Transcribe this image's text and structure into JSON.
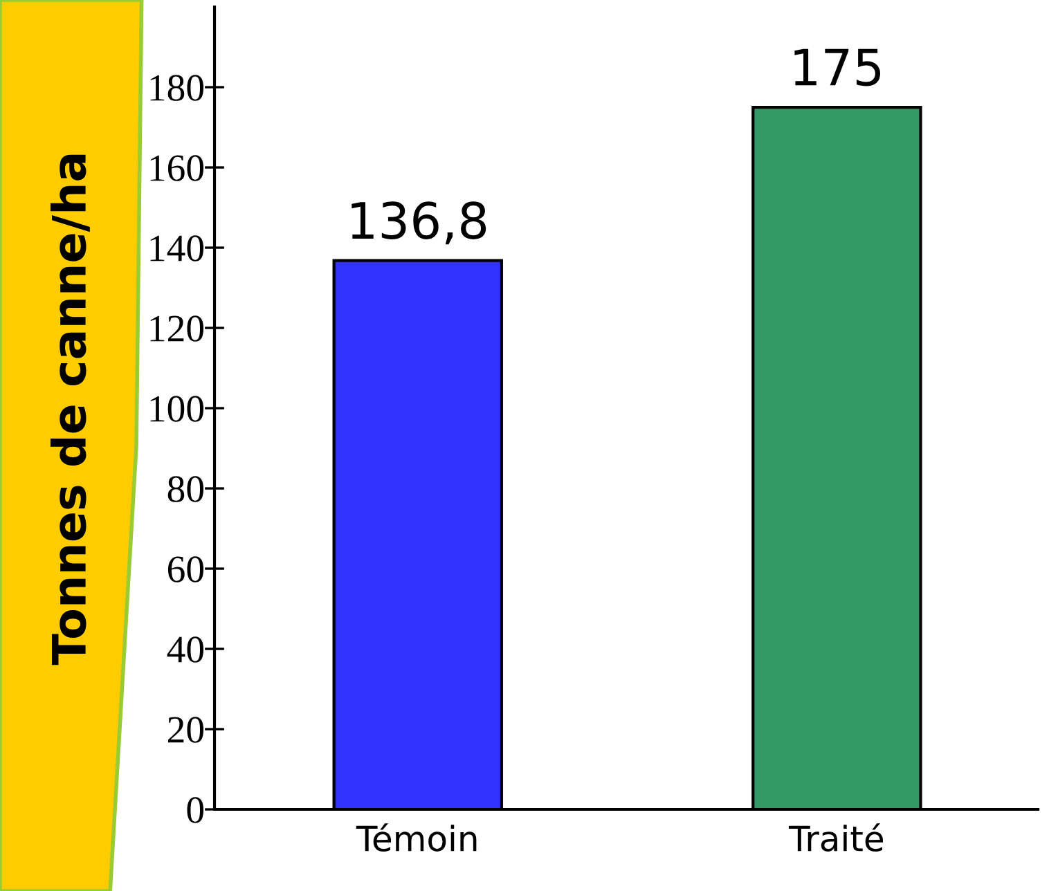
{
  "chart_data": {
    "type": "bar",
    "ylabel": "Tonnes de canne/ha",
    "categories": [
      "Témoin",
      "Traité"
    ],
    "values": [
      136.8,
      175
    ],
    "colors": [
      "#3333ff",
      "#339966"
    ],
    "value_labels": [
      "136,8",
      "175"
    ],
    "ylim": [
      0,
      200
    ],
    "yticks": [
      0,
      20,
      40,
      60,
      80,
      100,
      120,
      140,
      160,
      180
    ],
    "grid": false,
    "legend": false
  }
}
